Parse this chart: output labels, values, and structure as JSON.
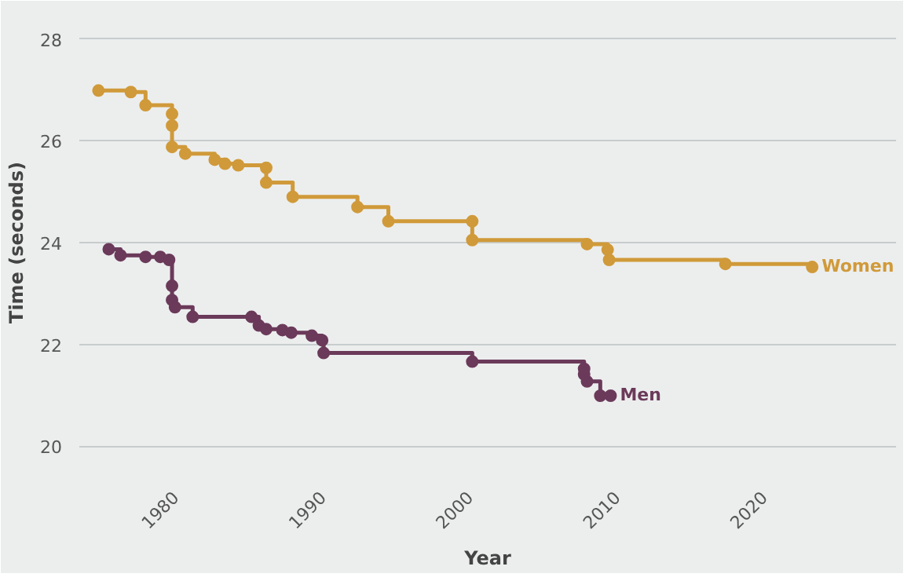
{
  "chart_data": {
    "type": "step",
    "xlabel": "Year",
    "ylabel": "Time (seconds)",
    "xlim": [
      1973.5,
      2029
    ],
    "ylim": [
      19.4,
      28.6
    ],
    "xticks": [
      1980,
      1990,
      2000,
      2010,
      2020
    ],
    "yticks": [
      20,
      22,
      24,
      26,
      28
    ],
    "grid": "y",
    "marker": "circle",
    "legend": false,
    "series": [
      {
        "name": "Women",
        "color": "#d09a3a",
        "x": [
          1974.8,
          1977.0,
          1978.0,
          1979.8,
          1979.8,
          1979.8,
          1980.7,
          1982.7,
          1983.4,
          1984.3,
          1986.2,
          1986.2,
          1988.0,
          1992.4,
          1994.5,
          2000.2,
          2000.2,
          2008.0,
          2009.4,
          2009.5,
          2017.4,
          2023.3
        ],
        "values": [
          26.99,
          26.96,
          26.7,
          26.53,
          26.3,
          25.88,
          25.75,
          25.63,
          25.55,
          25.52,
          25.47,
          25.18,
          24.9,
          24.7,
          24.42,
          24.42,
          24.05,
          23.97,
          23.86,
          23.66,
          23.58,
          23.52
        ]
      },
      {
        "name": "Men",
        "color": "#6b3a5a",
        "x": [
          1975.5,
          1976.3,
          1978.0,
          1979.0,
          1979.6,
          1979.8,
          1979.8,
          1980.0,
          1981.2,
          1985.2,
          1985.7,
          1986.2,
          1987.3,
          1987.9,
          1989.3,
          1990.0,
          1990.1,
          2000.2,
          2007.8,
          2007.8,
          2008.0,
          2008.9,
          2009.6
        ],
        "values": [
          23.87,
          23.75,
          23.72,
          23.72,
          23.66,
          23.15,
          22.87,
          22.73,
          22.54,
          22.54,
          22.37,
          22.3,
          22.28,
          22.23,
          22.17,
          22.08,
          21.83,
          21.66,
          21.52,
          21.41,
          21.27,
          20.99,
          20.99
        ]
      }
    ]
  }
}
